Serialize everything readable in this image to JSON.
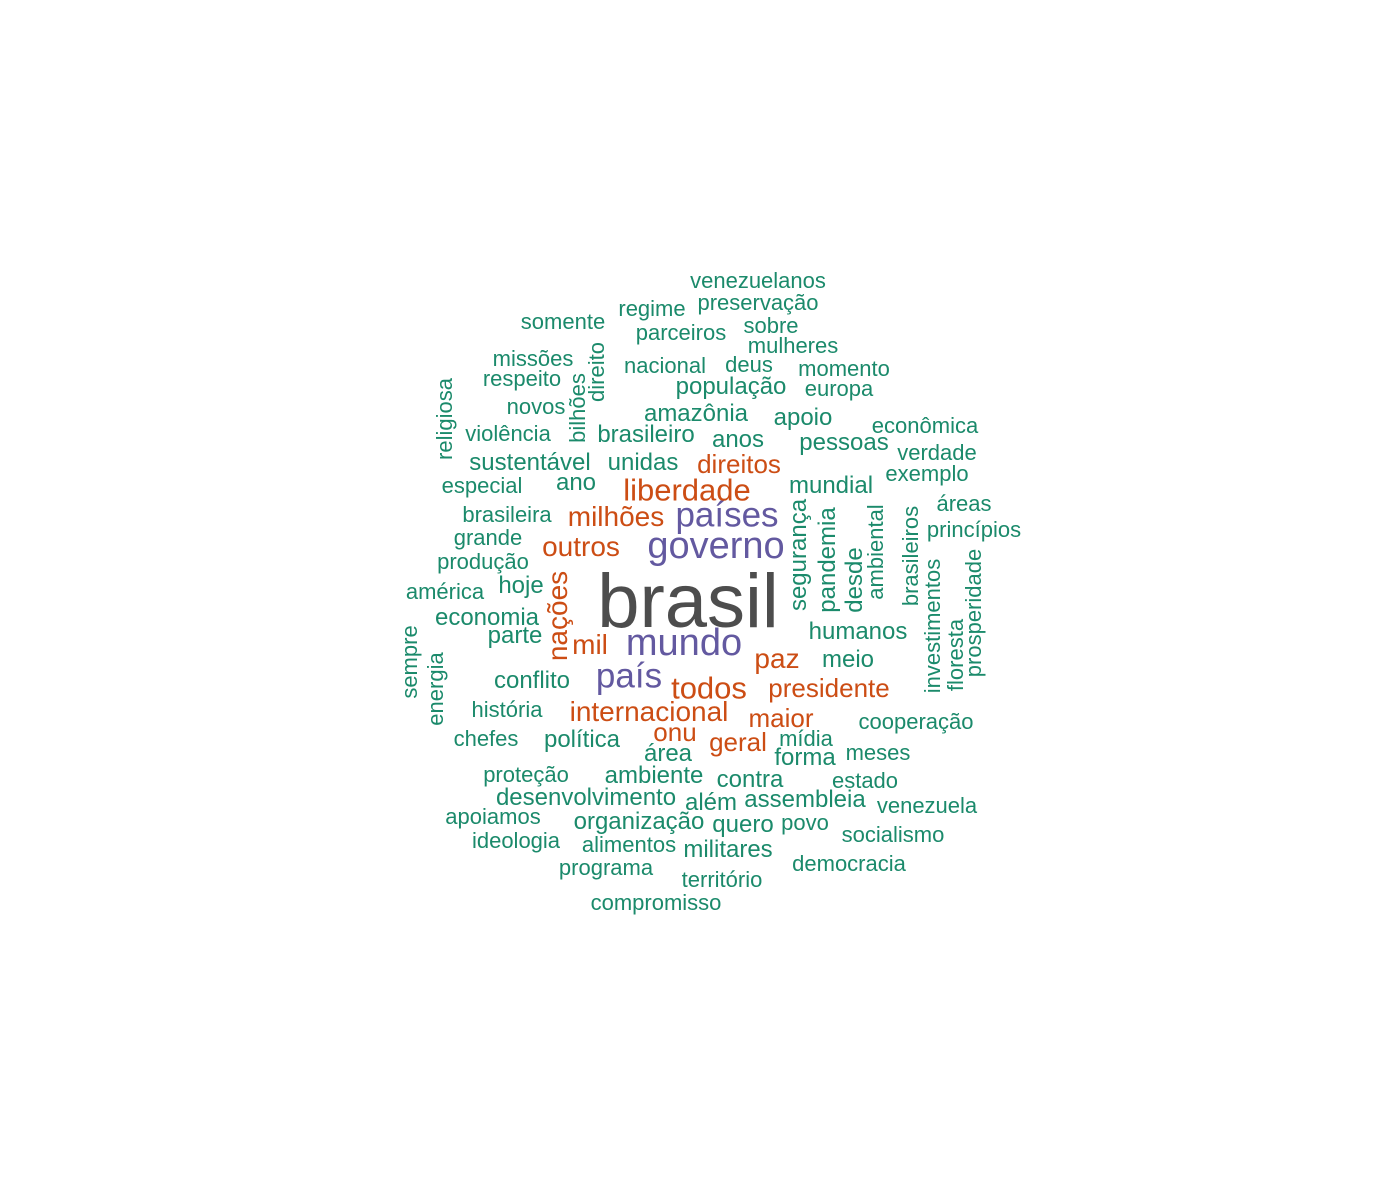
{
  "colors": {
    "top": "#4d4d4d",
    "purple": "#6359a0",
    "orange": "#cc4d14",
    "green": "#1b8a6b"
  },
  "words": [
    {
      "id": "brasil",
      "text": "brasil",
      "tier": 1
    },
    {
      "id": "governo",
      "text": "governo",
      "tier": 2
    },
    {
      "id": "mundo",
      "text": "mundo",
      "tier": 2
    },
    {
      "id": "paises",
      "text": "países",
      "tier": 2
    },
    {
      "id": "pais",
      "text": "país",
      "tier": 2
    },
    {
      "id": "liberdade",
      "text": "liberdade",
      "tier": 3
    },
    {
      "id": "todos",
      "text": "todos",
      "tier": 3
    },
    {
      "id": "milhoes",
      "text": "milhões",
      "tier": 3
    },
    {
      "id": "outros",
      "text": "outros",
      "tier": 3
    },
    {
      "id": "nacoes",
      "text": "nações",
      "tier": 3
    },
    {
      "id": "paz",
      "text": "paz",
      "tier": 3
    },
    {
      "id": "internacional",
      "text": "internacional",
      "tier": 3
    },
    {
      "id": "mil",
      "text": "mil",
      "tier": 3
    },
    {
      "id": "presidente",
      "text": "presidente",
      "tier": 3
    },
    {
      "id": "maior",
      "text": "maior",
      "tier": 3
    },
    {
      "id": "direitos",
      "text": "direitos",
      "tier": 3
    },
    {
      "id": "onu",
      "text": "onu",
      "tier": 3
    },
    {
      "id": "geral",
      "text": "geral",
      "tier": 3
    },
    {
      "id": "venezuelanos",
      "text": "venezuelanos",
      "tier": 4
    },
    {
      "id": "regime",
      "text": "regime",
      "tier": 4
    },
    {
      "id": "preservacao",
      "text": "preservação",
      "tier": 4
    },
    {
      "id": "somente",
      "text": "somente",
      "tier": 4
    },
    {
      "id": "sobre",
      "text": "sobre",
      "tier": 4
    },
    {
      "id": "parceiros",
      "text": "parceiros",
      "tier": 4
    },
    {
      "id": "mulheres",
      "text": "mulheres",
      "tier": 4
    },
    {
      "id": "missoes",
      "text": "missões",
      "tier": 4
    },
    {
      "id": "direito",
      "text": "direito",
      "tier": 4
    },
    {
      "id": "nacional",
      "text": "nacional",
      "tier": 4
    },
    {
      "id": "deus",
      "text": "deus",
      "tier": 4
    },
    {
      "id": "momento",
      "text": "momento",
      "tier": 4
    },
    {
      "id": "respeito",
      "text": "respeito",
      "tier": 4
    },
    {
      "id": "populacao",
      "text": "população",
      "tier": 4
    },
    {
      "id": "europa",
      "text": "europa",
      "tier": 4
    },
    {
      "id": "religiosa",
      "text": "religiosa",
      "tier": 4
    },
    {
      "id": "bilhoes",
      "text": "bilhões",
      "tier": 4
    },
    {
      "id": "novos",
      "text": "novos",
      "tier": 4
    },
    {
      "id": "amazonia",
      "text": "amazônia",
      "tier": 4
    },
    {
      "id": "apoio",
      "text": "apoio",
      "tier": 4
    },
    {
      "id": "economica",
      "text": "econômica",
      "tier": 4
    },
    {
      "id": "violencia",
      "text": "violência",
      "tier": 4
    },
    {
      "id": "brasileiro",
      "text": "brasileiro",
      "tier": 4
    },
    {
      "id": "anos",
      "text": "anos",
      "tier": 4
    },
    {
      "id": "pessoas",
      "text": "pessoas",
      "tier": 4
    },
    {
      "id": "verdade",
      "text": "verdade",
      "tier": 4
    },
    {
      "id": "sustentavel",
      "text": "sustentável",
      "tier": 4
    },
    {
      "id": "unidas",
      "text": "unidas",
      "tier": 4
    },
    {
      "id": "exemplo",
      "text": "exemplo",
      "tier": 4
    },
    {
      "id": "especial",
      "text": "especial",
      "tier": 4
    },
    {
      "id": "ano",
      "text": "ano",
      "tier": 4
    },
    {
      "id": "mundial",
      "text": "mundial",
      "tier": 4
    },
    {
      "id": "areas",
      "text": "áreas",
      "tier": 4
    },
    {
      "id": "brasileira",
      "text": "brasileira",
      "tier": 4
    },
    {
      "id": "principios",
      "text": "princípios",
      "tier": 4
    },
    {
      "id": "grande",
      "text": "grande",
      "tier": 4
    },
    {
      "id": "seguranca",
      "text": "segurança",
      "tier": 4
    },
    {
      "id": "pandemia",
      "text": "pandemia",
      "tier": 4
    },
    {
      "id": "desde",
      "text": "desde",
      "tier": 4
    },
    {
      "id": "ambiental",
      "text": "ambiental",
      "tier": 4
    },
    {
      "id": "brasileiros",
      "text": "brasileiros",
      "tier": 4
    },
    {
      "id": "investimentos",
      "text": "investimentos",
      "tier": 4
    },
    {
      "id": "floresta",
      "text": "floresta",
      "tier": 4
    },
    {
      "id": "prosperidade",
      "text": "prosperidade",
      "tier": 4
    },
    {
      "id": "producao",
      "text": "produção",
      "tier": 4
    },
    {
      "id": "hoje",
      "text": "hoje",
      "tier": 4
    },
    {
      "id": "america",
      "text": "américa",
      "tier": 4
    },
    {
      "id": "economia",
      "text": "economia",
      "tier": 4
    },
    {
      "id": "parte",
      "text": "parte",
      "tier": 4
    },
    {
      "id": "sempre",
      "text": "sempre",
      "tier": 4
    },
    {
      "id": "energia",
      "text": "energia",
      "tier": 4
    },
    {
      "id": "humanos",
      "text": "humanos",
      "tier": 4
    },
    {
      "id": "meio",
      "text": "meio",
      "tier": 4
    },
    {
      "id": "conflito",
      "text": "conflito",
      "tier": 4
    },
    {
      "id": "historia",
      "text": "história",
      "tier": 4
    },
    {
      "id": "cooperacao",
      "text": "cooperação",
      "tier": 4
    },
    {
      "id": "chefes",
      "text": "chefes",
      "tier": 4
    },
    {
      "id": "politica",
      "text": "política",
      "tier": 4
    },
    {
      "id": "area",
      "text": "área",
      "tier": 4
    },
    {
      "id": "midia",
      "text": "mídia",
      "tier": 4
    },
    {
      "id": "forma",
      "text": "forma",
      "tier": 4
    },
    {
      "id": "meses",
      "text": "meses",
      "tier": 4
    },
    {
      "id": "protecao",
      "text": "proteção",
      "tier": 4
    },
    {
      "id": "ambiente",
      "text": "ambiente",
      "tier": 4
    },
    {
      "id": "contra",
      "text": "contra",
      "tier": 4
    },
    {
      "id": "estado",
      "text": "estado",
      "tier": 4
    },
    {
      "id": "desenvolvimento",
      "text": "desenvolvimento",
      "tier": 4
    },
    {
      "id": "alem",
      "text": "além",
      "tier": 4
    },
    {
      "id": "assembleia",
      "text": "assembleia",
      "tier": 4
    },
    {
      "id": "venezuela",
      "text": "venezuela",
      "tier": 4
    },
    {
      "id": "apoiamos",
      "text": "apoiamos",
      "tier": 4
    },
    {
      "id": "organizacao",
      "text": "organização",
      "tier": 4
    },
    {
      "id": "quero",
      "text": "quero",
      "tier": 4
    },
    {
      "id": "povo",
      "text": "povo",
      "tier": 4
    },
    {
      "id": "socialismo",
      "text": "socialismo",
      "tier": 4
    },
    {
      "id": "ideologia",
      "text": "ideologia",
      "tier": 4
    },
    {
      "id": "alimentos",
      "text": "alimentos",
      "tier": 4
    },
    {
      "id": "militares",
      "text": "militares",
      "tier": 4
    },
    {
      "id": "democracia",
      "text": "democracia",
      "tier": 4
    },
    {
      "id": "programa",
      "text": "programa",
      "tier": 4
    },
    {
      "id": "territorio",
      "text": "território",
      "tier": 4
    },
    {
      "id": "compromisso",
      "text": "compromisso",
      "tier": 4
    }
  ]
}
